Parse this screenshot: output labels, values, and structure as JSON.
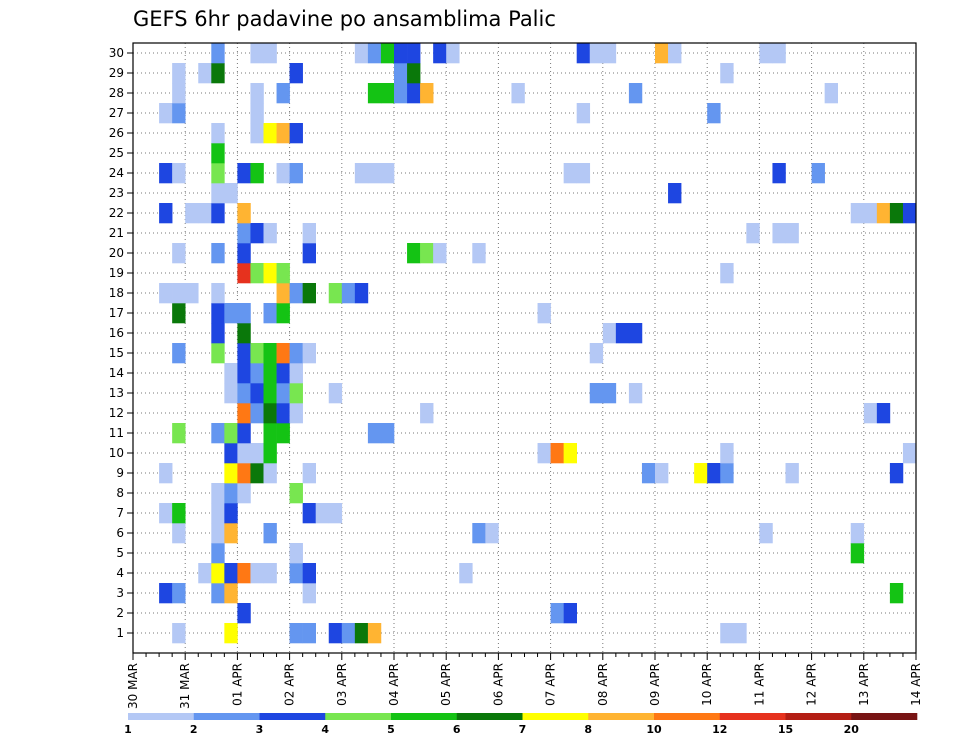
{
  "chart_data": {
    "type": "heatmap",
    "title": "GEFS 6hr padavine po ansamblima Palic",
    "xlabel": "",
    "ylabel": "",
    "x_tick_labels": [
      "30 MAR",
      "31 MAR",
      "01 APR",
      "02 APR",
      "03 APR",
      "04 APR",
      "05 APR",
      "06 APR",
      "07 APR",
      "08 APR",
      "09 APR",
      "10 APR",
      "11 APR",
      "12 APR",
      "13 APR",
      "14 APR"
    ],
    "y_tick_labels": [
      "1",
      "2",
      "3",
      "4",
      "5",
      "6",
      "7",
      "8",
      "9",
      "10",
      "11",
      "12",
      "13",
      "14",
      "15",
      "16",
      "17",
      "18",
      "19",
      "20",
      "21",
      "22",
      "23",
      "24",
      "25",
      "26",
      "27",
      "28",
      "29",
      "30"
    ],
    "steps_per_day": 4,
    "num_steps": 60,
    "grid": true,
    "legend_position": "bottom",
    "levels": [
      1,
      2,
      3,
      4,
      5,
      6,
      7,
      8,
      10,
      12,
      15,
      20
    ],
    "colors": [
      "#b4c8f5",
      "#6496f0",
      "#1e46e1",
      "#78e650",
      "#14c314",
      "#0a780a",
      "#ffff00",
      "#ffb432",
      "#ff7814",
      "#e6321e",
      "#b41e14",
      "#781414"
    ],
    "cells": [
      [
        1,
        4,
        1
      ],
      [
        1,
        8,
        7
      ],
      [
        1,
        13,
        2
      ],
      [
        1,
        14,
        2
      ],
      [
        1,
        16,
        3
      ],
      [
        1,
        17,
        2
      ],
      [
        1,
        18,
        6
      ],
      [
        1,
        19,
        8
      ],
      [
        1,
        46,
        1
      ],
      [
        1,
        47,
        1
      ],
      [
        2,
        9,
        3
      ],
      [
        2,
        33,
        2
      ],
      [
        2,
        34,
        3
      ],
      [
        3,
        3,
        3
      ],
      [
        3,
        4,
        2
      ],
      [
        3,
        7,
        2
      ],
      [
        3,
        8,
        8
      ],
      [
        3,
        14,
        1
      ],
      [
        3,
        59,
        5
      ],
      [
        4,
        6,
        1
      ],
      [
        4,
        7,
        7
      ],
      [
        4,
        8,
        3
      ],
      [
        4,
        9,
        9
      ],
      [
        4,
        10,
        1
      ],
      [
        4,
        11,
        1
      ],
      [
        4,
        13,
        2
      ],
      [
        4,
        14,
        3
      ],
      [
        4,
        26,
        1
      ],
      [
        5,
        7,
        2
      ],
      [
        5,
        13,
        1
      ],
      [
        5,
        56,
        5
      ],
      [
        6,
        4,
        1
      ],
      [
        6,
        7,
        1
      ],
      [
        6,
        8,
        8
      ],
      [
        6,
        11,
        2
      ],
      [
        6,
        27,
        2
      ],
      [
        6,
        28,
        1
      ],
      [
        6,
        49,
        1
      ],
      [
        6,
        56,
        1
      ],
      [
        7,
        3,
        1
      ],
      [
        7,
        4,
        5
      ],
      [
        7,
        7,
        1
      ],
      [
        7,
        8,
        3
      ],
      [
        7,
        14,
        3
      ],
      [
        7,
        15,
        1
      ],
      [
        7,
        16,
        1
      ],
      [
        8,
        7,
        1
      ],
      [
        8,
        8,
        2
      ],
      [
        8,
        9,
        1
      ],
      [
        8,
        13,
        4
      ],
      [
        9,
        3,
        1
      ],
      [
        9,
        8,
        7
      ],
      [
        9,
        9,
        9
      ],
      [
        9,
        10,
        6
      ],
      [
        9,
        11,
        1
      ],
      [
        9,
        14,
        1
      ],
      [
        9,
        40,
        2
      ],
      [
        9,
        41,
        1
      ],
      [
        9,
        44,
        7
      ],
      [
        9,
        45,
        3
      ],
      [
        9,
        46,
        2
      ],
      [
        9,
        51,
        1
      ],
      [
        9,
        59,
        3
      ],
      [
        10,
        8,
        3
      ],
      [
        10,
        9,
        1
      ],
      [
        10,
        10,
        1
      ],
      [
        10,
        11,
        5
      ],
      [
        10,
        32,
        1
      ],
      [
        10,
        33,
        9
      ],
      [
        10,
        34,
        7
      ],
      [
        10,
        46,
        1
      ],
      [
        10,
        60,
        1
      ],
      [
        11,
        4,
        4
      ],
      [
        11,
        7,
        2
      ],
      [
        11,
        8,
        4
      ],
      [
        11,
        9,
        3
      ],
      [
        11,
        11,
        5
      ],
      [
        11,
        12,
        5
      ],
      [
        11,
        19,
        2
      ],
      [
        11,
        20,
        2
      ],
      [
        12,
        9,
        9
      ],
      [
        12,
        10,
        2
      ],
      [
        12,
        11,
        6
      ],
      [
        12,
        12,
        3
      ],
      [
        12,
        13,
        1
      ],
      [
        12,
        23,
        1
      ],
      [
        12,
        57,
        1
      ],
      [
        12,
        58,
        3
      ],
      [
        13,
        8,
        1
      ],
      [
        13,
        9,
        2
      ],
      [
        13,
        10,
        3
      ],
      [
        13,
        11,
        5
      ],
      [
        13,
        12,
        2
      ],
      [
        13,
        13,
        4
      ],
      [
        13,
        16,
        1
      ],
      [
        13,
        36,
        2
      ],
      [
        13,
        37,
        2
      ],
      [
        13,
        39,
        1
      ],
      [
        14,
        8,
        1
      ],
      [
        14,
        9,
        3
      ],
      [
        14,
        10,
        2
      ],
      [
        14,
        11,
        5
      ],
      [
        14,
        12,
        3
      ],
      [
        14,
        13,
        1
      ],
      [
        15,
        4,
        2
      ],
      [
        15,
        7,
        4
      ],
      [
        15,
        9,
        3
      ],
      [
        15,
        10,
        4
      ],
      [
        15,
        11,
        5
      ],
      [
        15,
        12,
        9
      ],
      [
        15,
        13,
        2
      ],
      [
        15,
        14,
        1
      ],
      [
        15,
        36,
        1
      ],
      [
        16,
        7,
        3
      ],
      [
        16,
        9,
        6
      ],
      [
        16,
        37,
        1
      ],
      [
        16,
        38,
        3
      ],
      [
        16,
        39,
        3
      ],
      [
        17,
        4,
        6
      ],
      [
        17,
        7,
        3
      ],
      [
        17,
        8,
        2
      ],
      [
        17,
        9,
        2
      ],
      [
        17,
        11,
        2
      ],
      [
        17,
        12,
        5
      ],
      [
        17,
        32,
        1
      ],
      [
        18,
        3,
        1
      ],
      [
        18,
        4,
        1
      ],
      [
        18,
        5,
        1
      ],
      [
        18,
        7,
        1
      ],
      [
        18,
        12,
        8
      ],
      [
        18,
        13,
        2
      ],
      [
        18,
        14,
        6
      ],
      [
        18,
        16,
        4
      ],
      [
        18,
        17,
        2
      ],
      [
        18,
        18,
        3
      ],
      [
        19,
        9,
        10
      ],
      [
        19,
        10,
        4
      ],
      [
        19,
        11,
        7
      ],
      [
        19,
        12,
        4
      ],
      [
        19,
        46,
        1
      ],
      [
        20,
        4,
        1
      ],
      [
        20,
        7,
        2
      ],
      [
        20,
        9,
        3
      ],
      [
        20,
        14,
        3
      ],
      [
        20,
        22,
        5
      ],
      [
        20,
        23,
        4
      ],
      [
        20,
        24,
        1
      ],
      [
        20,
        27,
        1
      ],
      [
        21,
        9,
        2
      ],
      [
        21,
        10,
        3
      ],
      [
        21,
        11,
        1
      ],
      [
        21,
        14,
        1
      ],
      [
        21,
        48,
        1
      ],
      [
        21,
        50,
        1
      ],
      [
        21,
        51,
        1
      ],
      [
        22,
        3,
        3
      ],
      [
        22,
        5,
        1
      ],
      [
        22,
        6,
        1
      ],
      [
        22,
        7,
        3
      ],
      [
        22,
        9,
        8
      ],
      [
        22,
        56,
        1
      ],
      [
        22,
        57,
        1
      ],
      [
        22,
        58,
        8
      ],
      [
        22,
        59,
        6
      ],
      [
        22,
        60,
        3
      ],
      [
        23,
        7,
        1
      ],
      [
        23,
        8,
        1
      ],
      [
        23,
        42,
        3
      ],
      [
        24,
        3,
        3
      ],
      [
        24,
        4,
        1
      ],
      [
        24,
        7,
        4
      ],
      [
        24,
        9,
        3
      ],
      [
        24,
        10,
        5
      ],
      [
        24,
        12,
        1
      ],
      [
        24,
        13,
        2
      ],
      [
        24,
        18,
        1
      ],
      [
        24,
        19,
        1
      ],
      [
        24,
        20,
        1
      ],
      [
        24,
        34,
        1
      ],
      [
        24,
        35,
        1
      ],
      [
        24,
        50,
        3
      ],
      [
        24,
        53,
        2
      ],
      [
        25,
        7,
        5
      ],
      [
        26,
        7,
        1
      ],
      [
        26,
        10,
        1
      ],
      [
        26,
        11,
        7
      ],
      [
        26,
        12,
        8
      ],
      [
        26,
        13,
        3
      ],
      [
        27,
        3,
        1
      ],
      [
        27,
        4,
        2
      ],
      [
        27,
        10,
        1
      ],
      [
        27,
        35,
        1
      ],
      [
        27,
        45,
        2
      ],
      [
        28,
        4,
        1
      ],
      [
        28,
        10,
        1
      ],
      [
        28,
        12,
        2
      ],
      [
        28,
        19,
        5
      ],
      [
        28,
        20,
        5
      ],
      [
        28,
        21,
        2
      ],
      [
        28,
        22,
        3
      ],
      [
        28,
        23,
        8
      ],
      [
        28,
        30,
        1
      ],
      [
        28,
        39,
        2
      ],
      [
        28,
        54,
        1
      ],
      [
        29,
        4,
        1
      ],
      [
        29,
        6,
        1
      ],
      [
        29,
        7,
        6
      ],
      [
        29,
        13,
        3
      ],
      [
        29,
        21,
        2
      ],
      [
        29,
        22,
        6
      ],
      [
        29,
        46,
        1
      ],
      [
        30,
        7,
        2
      ],
      [
        30,
        10,
        1
      ],
      [
        30,
        11,
        1
      ],
      [
        30,
        18,
        1
      ],
      [
        30,
        19,
        2
      ],
      [
        30,
        20,
        5
      ],
      [
        30,
        21,
        3
      ],
      [
        30,
        22,
        3
      ],
      [
        30,
        24,
        3
      ],
      [
        30,
        25,
        1
      ],
      [
        30,
        35,
        3
      ],
      [
        30,
        36,
        1
      ],
      [
        30,
        37,
        1
      ],
      [
        30,
        41,
        8
      ],
      [
        30,
        42,
        1
      ],
      [
        30,
        49,
        1
      ],
      [
        30,
        50,
        1
      ]
    ]
  }
}
